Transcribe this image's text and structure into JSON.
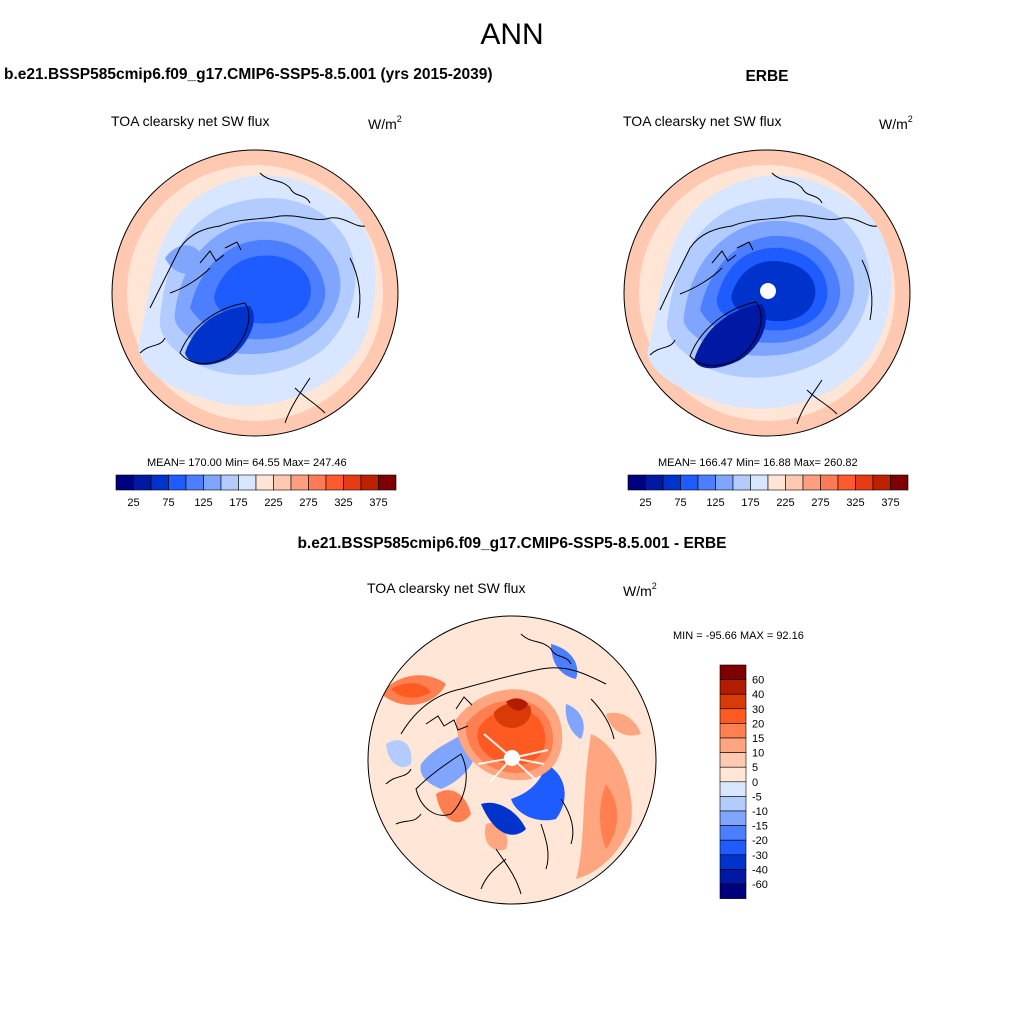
{
  "page": {
    "title": "ANN"
  },
  "panels": [
    {
      "id": "case",
      "title": "b.e21.BSSP585cmip6.f09_g17.CMIP6-SSP5-8.5.001 (yrs 2015-2039)",
      "variable": "TOA clearsky net SW flux",
      "units_base": "W/m",
      "units_exp": "2",
      "stats": "MEAN= 170.00  Min=  64.55  Max= 247.46",
      "colorbar_labels": [
        "25",
        "75",
        "125",
        "175",
        "225",
        "275",
        "325",
        "375"
      ]
    },
    {
      "id": "reference",
      "title": "ERBE",
      "variable": "TOA clearsky net SW flux",
      "units_base": "W/m",
      "units_exp": "2",
      "stats": "MEAN= 166.47  Min=  16.88  Max= 260.82",
      "colorbar_labels": [
        "25",
        "75",
        "125",
        "175",
        "225",
        "275",
        "325",
        "375"
      ]
    },
    {
      "id": "difference",
      "title": "b.e21.BSSP585cmip6.f09_g17.CMIP6-SSP5-8.5.001 - ERBE",
      "variable": "TOA clearsky net SW flux",
      "units_base": "W/m",
      "units_exp": "2",
      "stats": "MIN = -95.66 MAX =  92.16",
      "colorbar_labels": [
        "60",
        "40",
        "30",
        "20",
        "15",
        "10",
        "5",
        "0",
        "-5",
        "-10",
        "-15",
        "-20",
        "-30",
        "-40",
        "-60"
      ]
    }
  ],
  "colors": {
    "abs_scale": [
      "#00007f",
      "#0019a5",
      "#0033cc",
      "#1f5cff",
      "#4c7fff",
      "#7fa5ff",
      "#b2ccff",
      "#d9e6ff",
      "#ffe5d6",
      "#ffc8b0",
      "#ff9e7f",
      "#ff7a55",
      "#ff5a2e",
      "#e63b14",
      "#bf2000",
      "#7f0000"
    ],
    "diff_scale": [
      "#7f0000",
      "#b21c00",
      "#d93a08",
      "#ff5a22",
      "#ff7f50",
      "#ffa57f",
      "#ffcaaf",
      "#ffe6d6",
      "#d9e6ff",
      "#b2ccff",
      "#7fa5ff",
      "#4c7fff",
      "#1f5cff",
      "#0033cc",
      "#0019a5",
      "#00007f"
    ]
  }
}
